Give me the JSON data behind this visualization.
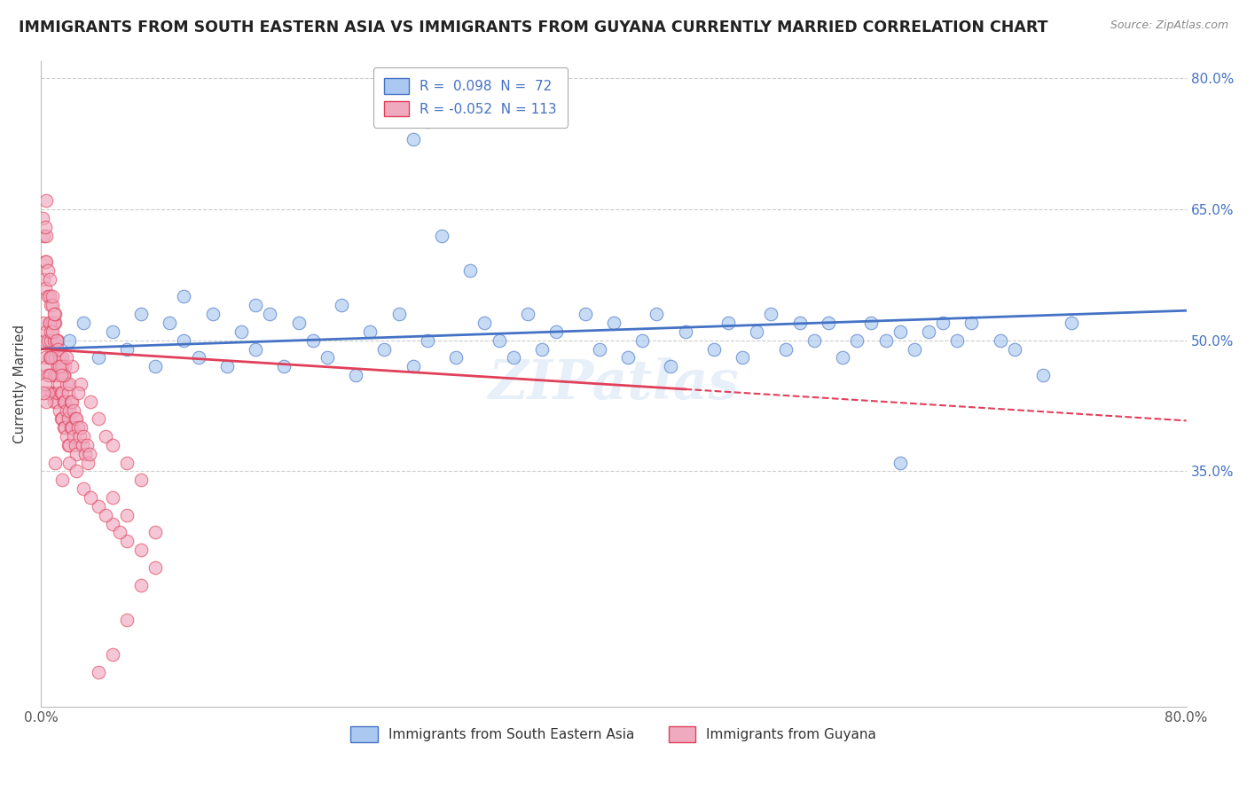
{
  "title": "IMMIGRANTS FROM SOUTH EASTERN ASIA VS IMMIGRANTS FROM GUYANA CURRENTLY MARRIED CORRELATION CHART",
  "source": "Source: ZipAtlas.com",
  "ylabel": "Currently Married",
  "legend_label1": "Immigrants from South Eastern Asia",
  "legend_label2": "Immigrants from Guyana",
  "r1": 0.098,
  "n1": 72,
  "r2": -0.052,
  "n2": 113,
  "xlim": [
    0.0,
    0.8
  ],
  "ylim": [
    0.08,
    0.82
  ],
  "ytick_labels": [
    "35.0%",
    "50.0%",
    "65.0%",
    "80.0%"
  ],
  "ytick_positions": [
    0.35,
    0.5,
    0.65,
    0.8
  ],
  "color1": "#aac8f0",
  "color2": "#f0aac0",
  "line_color1": "#4472c4",
  "line_color2": "#e0405a",
  "watermark": "ZIPatlas",
  "scatter1": [
    [
      0.02,
      0.5
    ],
    [
      0.03,
      0.52
    ],
    [
      0.04,
      0.48
    ],
    [
      0.05,
      0.51
    ],
    [
      0.06,
      0.49
    ],
    [
      0.07,
      0.53
    ],
    [
      0.08,
      0.47
    ],
    [
      0.09,
      0.52
    ],
    [
      0.1,
      0.5
    ],
    [
      0.11,
      0.48
    ],
    [
      0.12,
      0.53
    ],
    [
      0.13,
      0.47
    ],
    [
      0.14,
      0.51
    ],
    [
      0.15,
      0.49
    ],
    [
      0.16,
      0.53
    ],
    [
      0.17,
      0.47
    ],
    [
      0.18,
      0.52
    ],
    [
      0.19,
      0.5
    ],
    [
      0.2,
      0.48
    ],
    [
      0.21,
      0.54
    ],
    [
      0.22,
      0.46
    ],
    [
      0.23,
      0.51
    ],
    [
      0.24,
      0.49
    ],
    [
      0.25,
      0.53
    ],
    [
      0.26,
      0.47
    ],
    [
      0.27,
      0.75
    ],
    [
      0.26,
      0.73
    ],
    [
      0.28,
      0.62
    ],
    [
      0.3,
      0.58
    ],
    [
      0.1,
      0.55
    ],
    [
      0.15,
      0.54
    ],
    [
      0.27,
      0.5
    ],
    [
      0.29,
      0.48
    ],
    [
      0.31,
      0.52
    ],
    [
      0.32,
      0.5
    ],
    [
      0.33,
      0.48
    ],
    [
      0.34,
      0.53
    ],
    [
      0.35,
      0.49
    ],
    [
      0.36,
      0.51
    ],
    [
      0.38,
      0.53
    ],
    [
      0.39,
      0.49
    ],
    [
      0.4,
      0.52
    ],
    [
      0.41,
      0.48
    ],
    [
      0.42,
      0.5
    ],
    [
      0.43,
      0.53
    ],
    [
      0.44,
      0.47
    ],
    [
      0.45,
      0.51
    ],
    [
      0.47,
      0.49
    ],
    [
      0.48,
      0.52
    ],
    [
      0.49,
      0.48
    ],
    [
      0.5,
      0.51
    ],
    [
      0.51,
      0.53
    ],
    [
      0.52,
      0.49
    ],
    [
      0.53,
      0.52
    ],
    [
      0.54,
      0.5
    ],
    [
      0.55,
      0.52
    ],
    [
      0.56,
      0.48
    ],
    [
      0.57,
      0.5
    ],
    [
      0.58,
      0.52
    ],
    [
      0.59,
      0.5
    ],
    [
      0.6,
      0.51
    ],
    [
      0.61,
      0.49
    ],
    [
      0.62,
      0.51
    ],
    [
      0.63,
      0.52
    ],
    [
      0.64,
      0.5
    ],
    [
      0.65,
      0.52
    ],
    [
      0.67,
      0.5
    ],
    [
      0.68,
      0.49
    ],
    [
      0.7,
      0.46
    ],
    [
      0.72,
      0.52
    ],
    [
      0.6,
      0.36
    ]
  ],
  "scatter2": [
    [
      0.002,
      0.52
    ],
    [
      0.003,
      0.5
    ],
    [
      0.003,
      0.48
    ],
    [
      0.004,
      0.51
    ],
    [
      0.004,
      0.47
    ],
    [
      0.005,
      0.5
    ],
    [
      0.005,
      0.46
    ],
    [
      0.006,
      0.52
    ],
    [
      0.006,
      0.48
    ],
    [
      0.007,
      0.5
    ],
    [
      0.007,
      0.46
    ],
    [
      0.007,
      0.44
    ],
    [
      0.008,
      0.52
    ],
    [
      0.008,
      0.48
    ],
    [
      0.008,
      0.44
    ],
    [
      0.009,
      0.5
    ],
    [
      0.009,
      0.46
    ],
    [
      0.009,
      0.43
    ],
    [
      0.01,
      0.52
    ],
    [
      0.01,
      0.48
    ],
    [
      0.01,
      0.44
    ],
    [
      0.011,
      0.5
    ],
    [
      0.011,
      0.46
    ],
    [
      0.011,
      0.43
    ],
    [
      0.012,
      0.5
    ],
    [
      0.012,
      0.47
    ],
    [
      0.012,
      0.44
    ],
    [
      0.013,
      0.48
    ],
    [
      0.013,
      0.45
    ],
    [
      0.013,
      0.42
    ],
    [
      0.014,
      0.47
    ],
    [
      0.014,
      0.44
    ],
    [
      0.014,
      0.41
    ],
    [
      0.015,
      0.48
    ],
    [
      0.015,
      0.44
    ],
    [
      0.015,
      0.41
    ],
    [
      0.016,
      0.46
    ],
    [
      0.016,
      0.43
    ],
    [
      0.016,
      0.4
    ],
    [
      0.017,
      0.47
    ],
    [
      0.017,
      0.43
    ],
    [
      0.017,
      0.4
    ],
    [
      0.018,
      0.45
    ],
    [
      0.018,
      0.42
    ],
    [
      0.018,
      0.39
    ],
    [
      0.019,
      0.44
    ],
    [
      0.019,
      0.41
    ],
    [
      0.019,
      0.38
    ],
    [
      0.02,
      0.45
    ],
    [
      0.02,
      0.42
    ],
    [
      0.02,
      0.38
    ],
    [
      0.021,
      0.43
    ],
    [
      0.021,
      0.4
    ],
    [
      0.022,
      0.43
    ],
    [
      0.022,
      0.4
    ],
    [
      0.023,
      0.42
    ],
    [
      0.023,
      0.39
    ],
    [
      0.024,
      0.41
    ],
    [
      0.024,
      0.38
    ],
    [
      0.025,
      0.41
    ],
    [
      0.025,
      0.37
    ],
    [
      0.026,
      0.4
    ],
    [
      0.027,
      0.39
    ],
    [
      0.028,
      0.4
    ],
    [
      0.029,
      0.38
    ],
    [
      0.03,
      0.39
    ],
    [
      0.031,
      0.37
    ],
    [
      0.032,
      0.38
    ],
    [
      0.033,
      0.36
    ],
    [
      0.034,
      0.37
    ],
    [
      0.001,
      0.64
    ],
    [
      0.002,
      0.62
    ],
    [
      0.002,
      0.57
    ],
    [
      0.003,
      0.59
    ],
    [
      0.003,
      0.56
    ],
    [
      0.004,
      0.62
    ],
    [
      0.004,
      0.59
    ],
    [
      0.005,
      0.55
    ],
    [
      0.006,
      0.55
    ],
    [
      0.006,
      0.52
    ],
    [
      0.007,
      0.54
    ],
    [
      0.007,
      0.51
    ],
    [
      0.008,
      0.54
    ],
    [
      0.008,
      0.51
    ],
    [
      0.009,
      0.52
    ],
    [
      0.01,
      0.53
    ],
    [
      0.015,
      0.47
    ],
    [
      0.016,
      0.46
    ],
    [
      0.004,
      0.66
    ],
    [
      0.003,
      0.63
    ],
    [
      0.005,
      0.58
    ],
    [
      0.006,
      0.57
    ],
    [
      0.008,
      0.55
    ],
    [
      0.009,
      0.53
    ],
    [
      0.011,
      0.5
    ],
    [
      0.012,
      0.49
    ],
    [
      0.013,
      0.47
    ],
    [
      0.014,
      0.46
    ],
    [
      0.007,
      0.48
    ],
    [
      0.006,
      0.46
    ],
    [
      0.005,
      0.44
    ],
    [
      0.004,
      0.43
    ],
    [
      0.003,
      0.45
    ],
    [
      0.002,
      0.44
    ],
    [
      0.02,
      0.36
    ],
    [
      0.025,
      0.35
    ],
    [
      0.03,
      0.33
    ],
    [
      0.04,
      0.31
    ],
    [
      0.05,
      0.29
    ],
    [
      0.06,
      0.27
    ],
    [
      0.015,
      0.34
    ],
    [
      0.01,
      0.36
    ],
    [
      0.035,
      0.32
    ],
    [
      0.045,
      0.3
    ],
    [
      0.055,
      0.28
    ],
    [
      0.07,
      0.26
    ],
    [
      0.08,
      0.24
    ],
    [
      0.028,
      0.45
    ],
    [
      0.022,
      0.47
    ],
    [
      0.018,
      0.48
    ],
    [
      0.026,
      0.44
    ],
    [
      0.035,
      0.43
    ],
    [
      0.04,
      0.41
    ],
    [
      0.045,
      0.39
    ],
    [
      0.05,
      0.38
    ],
    [
      0.06,
      0.36
    ],
    [
      0.07,
      0.34
    ],
    [
      0.05,
      0.32
    ],
    [
      0.06,
      0.3
    ],
    [
      0.08,
      0.28
    ],
    [
      0.07,
      0.22
    ],
    [
      0.06,
      0.18
    ],
    [
      0.05,
      0.14
    ],
    [
      0.04,
      0.12
    ]
  ],
  "trendline1_solid": [
    [
      0.0,
      0.49
    ],
    [
      0.8,
      0.534
    ]
  ],
  "trendline2_solid": [
    [
      0.0,
      0.49
    ],
    [
      0.45,
      0.444
    ]
  ],
  "trendline2_dashed": [
    [
      0.45,
      0.444
    ],
    [
      0.8,
      0.408
    ]
  ]
}
